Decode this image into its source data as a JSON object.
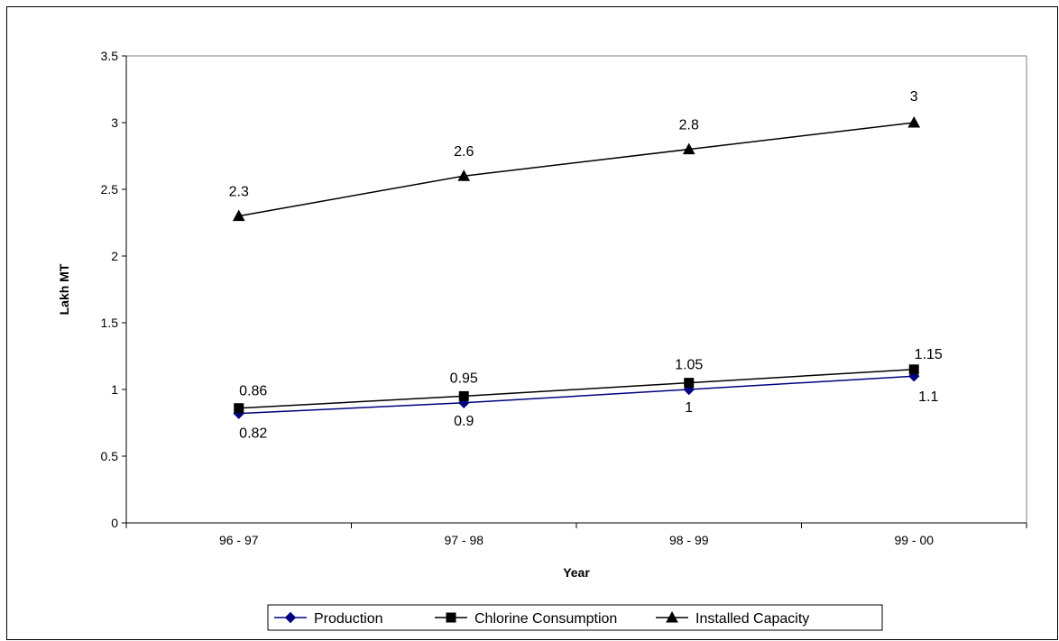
{
  "chart_data": {
    "type": "line",
    "categories": [
      "96 - 97",
      "97 - 98",
      "98 - 99",
      "99 - 00"
    ],
    "series": [
      {
        "name": "Production",
        "values": [
          0.82,
          0.9,
          1,
          1.1
        ],
        "labels": [
          "0.82",
          "0.9",
          "1",
          "1.1"
        ],
        "color": "#000080",
        "marker": "diamond"
      },
      {
        "name": "Chlorine Consumption",
        "values": [
          0.86,
          0.95,
          1.05,
          1.15
        ],
        "labels": [
          "0.86",
          "0.95",
          "1.05",
          "1.15"
        ],
        "color": "#000000",
        "marker": "square"
      },
      {
        "name": "Installed Capacity",
        "values": [
          2.3,
          2.6,
          2.8,
          3
        ],
        "labels": [
          "2.3",
          "2.6",
          "2.8",
          "3"
        ],
        "color": "#000000",
        "marker": "triangle"
      }
    ],
    "title": "",
    "xlabel": "Year",
    "ylabel": "Lakh MT",
    "ylim": [
      0,
      3.5
    ],
    "yticks": [
      "0",
      "0.5",
      "1",
      "1.5",
      "2",
      "2.5",
      "3",
      "3.5"
    ],
    "grid": false,
    "legend": "bottom"
  }
}
